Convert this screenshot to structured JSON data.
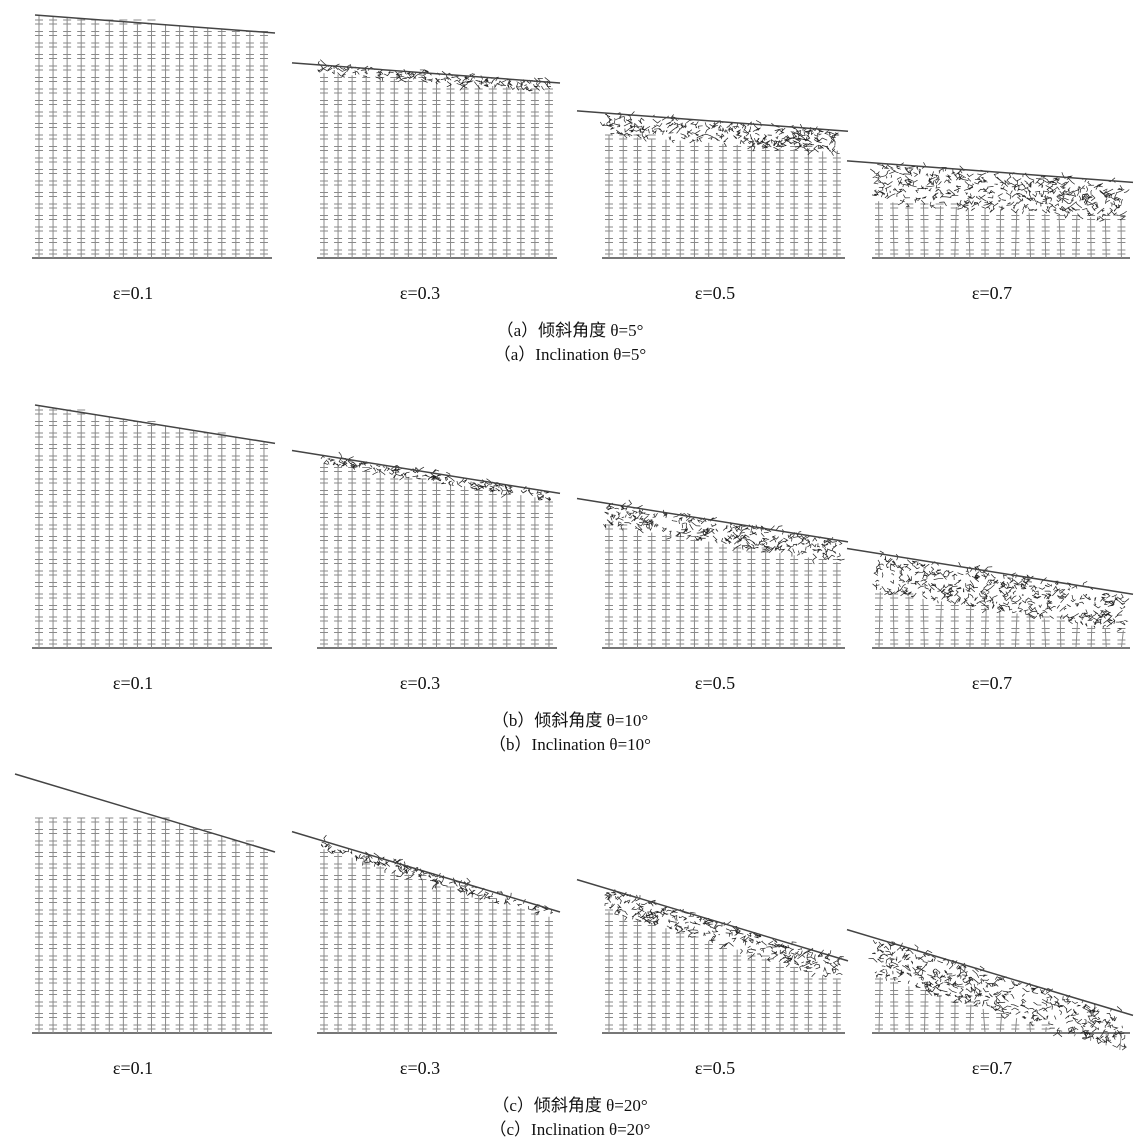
{
  "panels": [
    {
      "subfigures": [
        {
          "label": "ε=0.1"
        },
        {
          "label": "ε=0.3"
        },
        {
          "label": "ε=0.5"
        },
        {
          "label": "ε=0.7"
        }
      ],
      "caption_cn": "（a）倾斜角度 θ=5°",
      "caption_en": "（a）Inclination θ=5°"
    },
    {
      "subfigures": [
        {
          "label": "ε=0.1"
        },
        {
          "label": "ε=0.3"
        },
        {
          "label": "ε=0.5"
        },
        {
          "label": "ε=0.7"
        }
      ],
      "caption_cn": "（b）倾斜角度 θ=10°",
      "caption_en": "（b）Inclination θ=10°"
    },
    {
      "subfigures": [
        {
          "label": "ε=0.1"
        },
        {
          "label": "ε=0.3"
        },
        {
          "label": "ε=0.5"
        },
        {
          "label": "ε=0.7"
        }
      ],
      "caption_cn": "（c）倾斜角度 θ=20°",
      "caption_en": "（c）Inclination θ=20°"
    }
  ]
}
